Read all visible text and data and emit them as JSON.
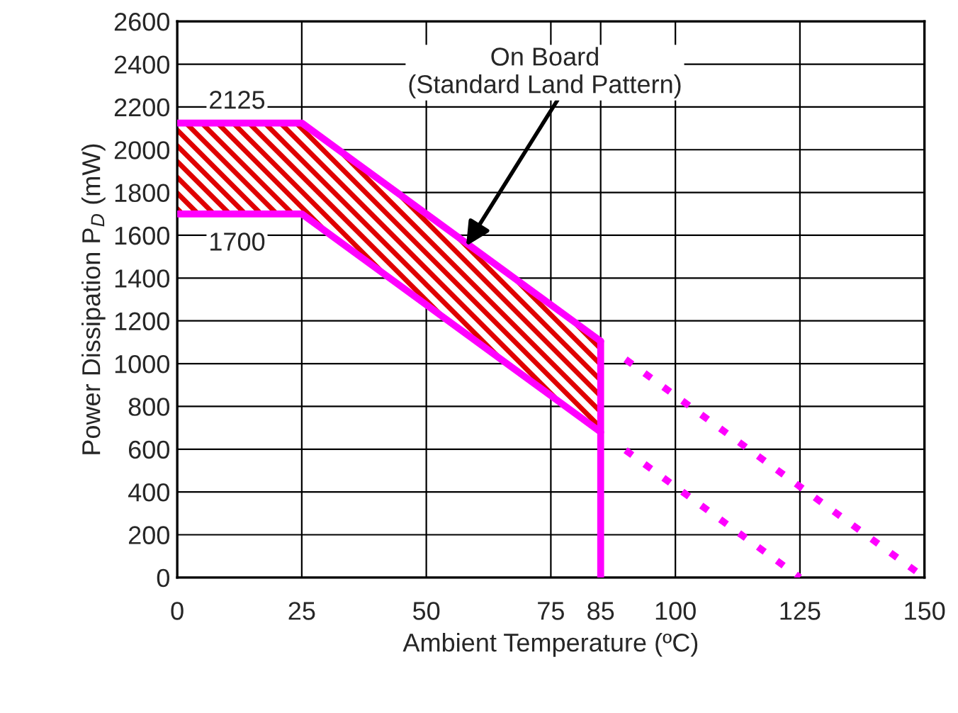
{
  "chart_data": {
    "type": "line",
    "xlabel": "Ambient Temperature (ºC)",
    "ylabel": "Power Dissipation P$_{D}$ (mW)",
    "xlim": [
      0,
      150
    ],
    "ylim": [
      0,
      2600
    ],
    "xticks": [
      0,
      25,
      50,
      75,
      {
        "value": 85,
        "label": "85"
      },
      100,
      125,
      150
    ],
    "yticks": [
      0,
      200,
      400,
      600,
      800,
      1000,
      1200,
      1400,
      1600,
      1800,
      2000,
      2200,
      2400,
      2600
    ],
    "grid": true,
    "series": [
      {
        "color": "#ff00ff",
        "line_style": "solid",
        "x": [
          0,
          25,
          85
        ],
        "values": [
          2125,
          2125,
          1105
        ],
        "lower": [
          1700,
          1700,
          680
        ],
        "upper": [
          2125,
          2125,
          1105
        ]
      },
      {
        "color": "#ff00ff",
        "line_style": "solid",
        "x": [
          0,
          25,
          85
        ],
        "values": [
          1700,
          1700,
          680
        ]
      },
      {
        "color": "#ff00ff",
        "line_style": "solid",
        "x": [
          85,
          85
        ],
        "values": [
          0,
          1105
        ]
      },
      {
        "color": "#ff00ff",
        "line_style": "dotted",
        "x": [
          90,
          150
        ],
        "values": [
          1020,
          0
        ]
      },
      {
        "color": "#ff00ff",
        "line_style": "dotted",
        "x": [
          90,
          125
        ],
        "values": [
          595,
          0
        ]
      }
    ],
    "annotations": [
      "2125",
      "1700",
      {
        "text": "On Board\n(Standard Land Pattern)",
        "x": 58,
        "y": 1550
      }
    ]
  }
}
